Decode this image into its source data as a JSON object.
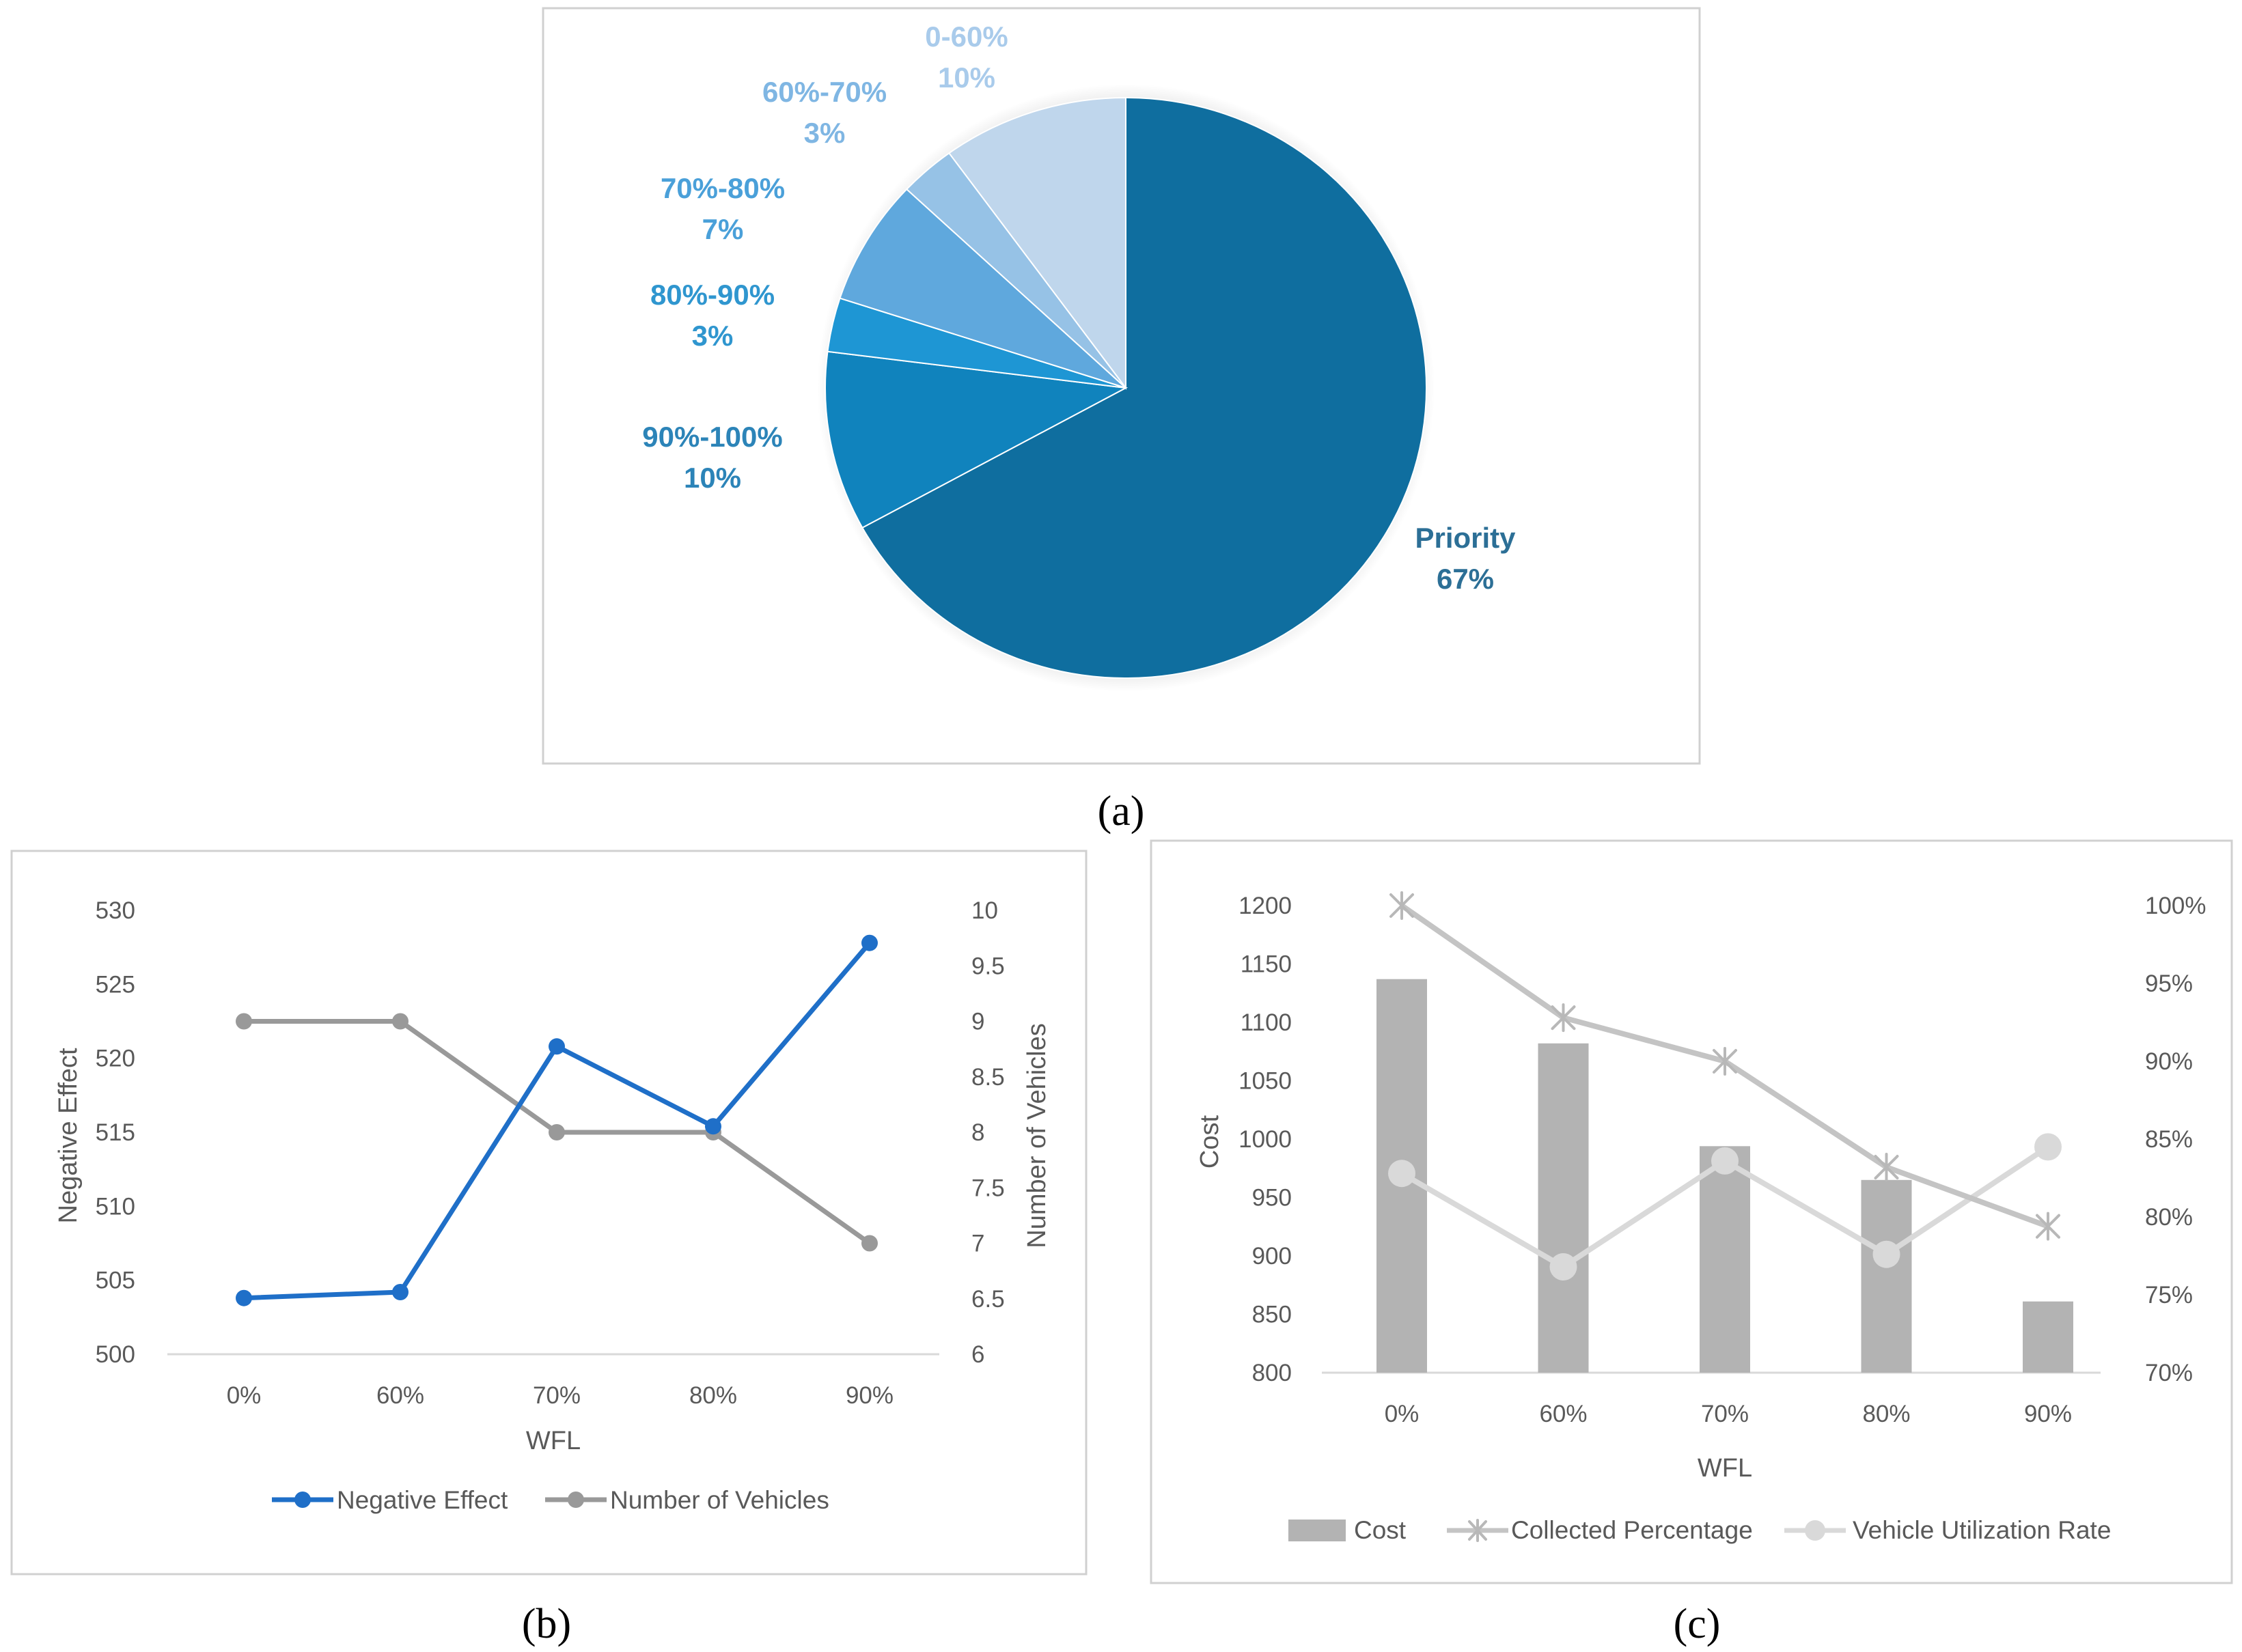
{
  "colors": {
    "pie": [
      "#0f6e9f",
      "#1083bd",
      "#1e96d4",
      "#5fa8dd",
      "#96c2e6",
      "#bfd6ec"
    ],
    "pie_labels": [
      "#2c6f96",
      "#2c84b8",
      "#2f96cf",
      "#4aa0d9",
      "#7fb6e3",
      "#a9cbeb"
    ],
    "negative_effect": "#1f6fc8",
    "vehicles": "#999999",
    "cost_bar": "#b3b3b3",
    "collected": "#c4c4c4",
    "utilization": "#d9d9d9",
    "frame": "#d0d0d0",
    "gridline": "#d9d9d9"
  },
  "chart_data": [
    {
      "id": "a",
      "type": "pie",
      "caption": "(a)",
      "slices": [
        {
          "name": "Priority",
          "value": 67,
          "label_pct": "67%"
        },
        {
          "name": "90%-100%",
          "value": 10,
          "label_pct": "10%"
        },
        {
          "name": "80%-90%",
          "value": 3,
          "label_pct": "3%"
        },
        {
          "name": "70%-80%",
          "value": 7,
          "label_pct": "7%"
        },
        {
          "name": "60%-70%",
          "value": 3,
          "label_pct": "3%"
        },
        {
          "name": "0-60%",
          "value": 10,
          "label_pct": "10%"
        }
      ]
    },
    {
      "id": "b",
      "type": "line",
      "caption": "(b)",
      "categories": [
        "0%",
        "60%",
        "70%",
        "80%",
        "90%"
      ],
      "xlabel": "WFL",
      "ylabel": "Negative Effect",
      "y2label": "Number of Vehicles",
      "ylim": [
        500,
        530
      ],
      "yticks": [
        500,
        505,
        510,
        515,
        520,
        525,
        530
      ],
      "y2lim": [
        6,
        10
      ],
      "y2ticks": [
        "6",
        "6.5",
        "7",
        "7.5",
        "8",
        "8.5",
        "9",
        "9.5",
        "10"
      ],
      "series": [
        {
          "name": "Negative Effect",
          "axis": "left",
          "values": [
            503.8,
            504.2,
            520.8,
            515.4,
            527.8
          ]
        },
        {
          "name": "Number of Vehicles",
          "axis": "right",
          "values": [
            9,
            9,
            8,
            8,
            7
          ]
        }
      ]
    },
    {
      "id": "c",
      "type": "bar",
      "caption": "(c)",
      "categories": [
        "0%",
        "60%",
        "70%",
        "80%",
        "90%"
      ],
      "xlabel": "WFL",
      "ylabel": "Cost",
      "ylim": [
        800,
        1200
      ],
      "yticks": [
        800,
        850,
        900,
        950,
        1000,
        1050,
        1100,
        1150,
        1200
      ],
      "y2lim": [
        70,
        100
      ],
      "y2ticks": [
        "70%",
        "75%",
        "80%",
        "85%",
        "90%",
        "95%",
        "100%"
      ],
      "series": [
        {
          "name": "Cost",
          "kind": "bar",
          "axis": "left",
          "values": [
            1137,
            1082,
            994,
            965,
            861
          ]
        },
        {
          "name": "Collected Percentage",
          "kind": "line",
          "marker": "star",
          "axis": "right",
          "values": [
            100,
            92.8,
            90,
            83.2,
            79.4
          ]
        },
        {
          "name": "Vehicle Utilization Rate",
          "kind": "line",
          "marker": "circle",
          "axis": "right",
          "values": [
            82.8,
            76.8,
            83.6,
            77.6,
            84.5
          ]
        }
      ]
    }
  ]
}
